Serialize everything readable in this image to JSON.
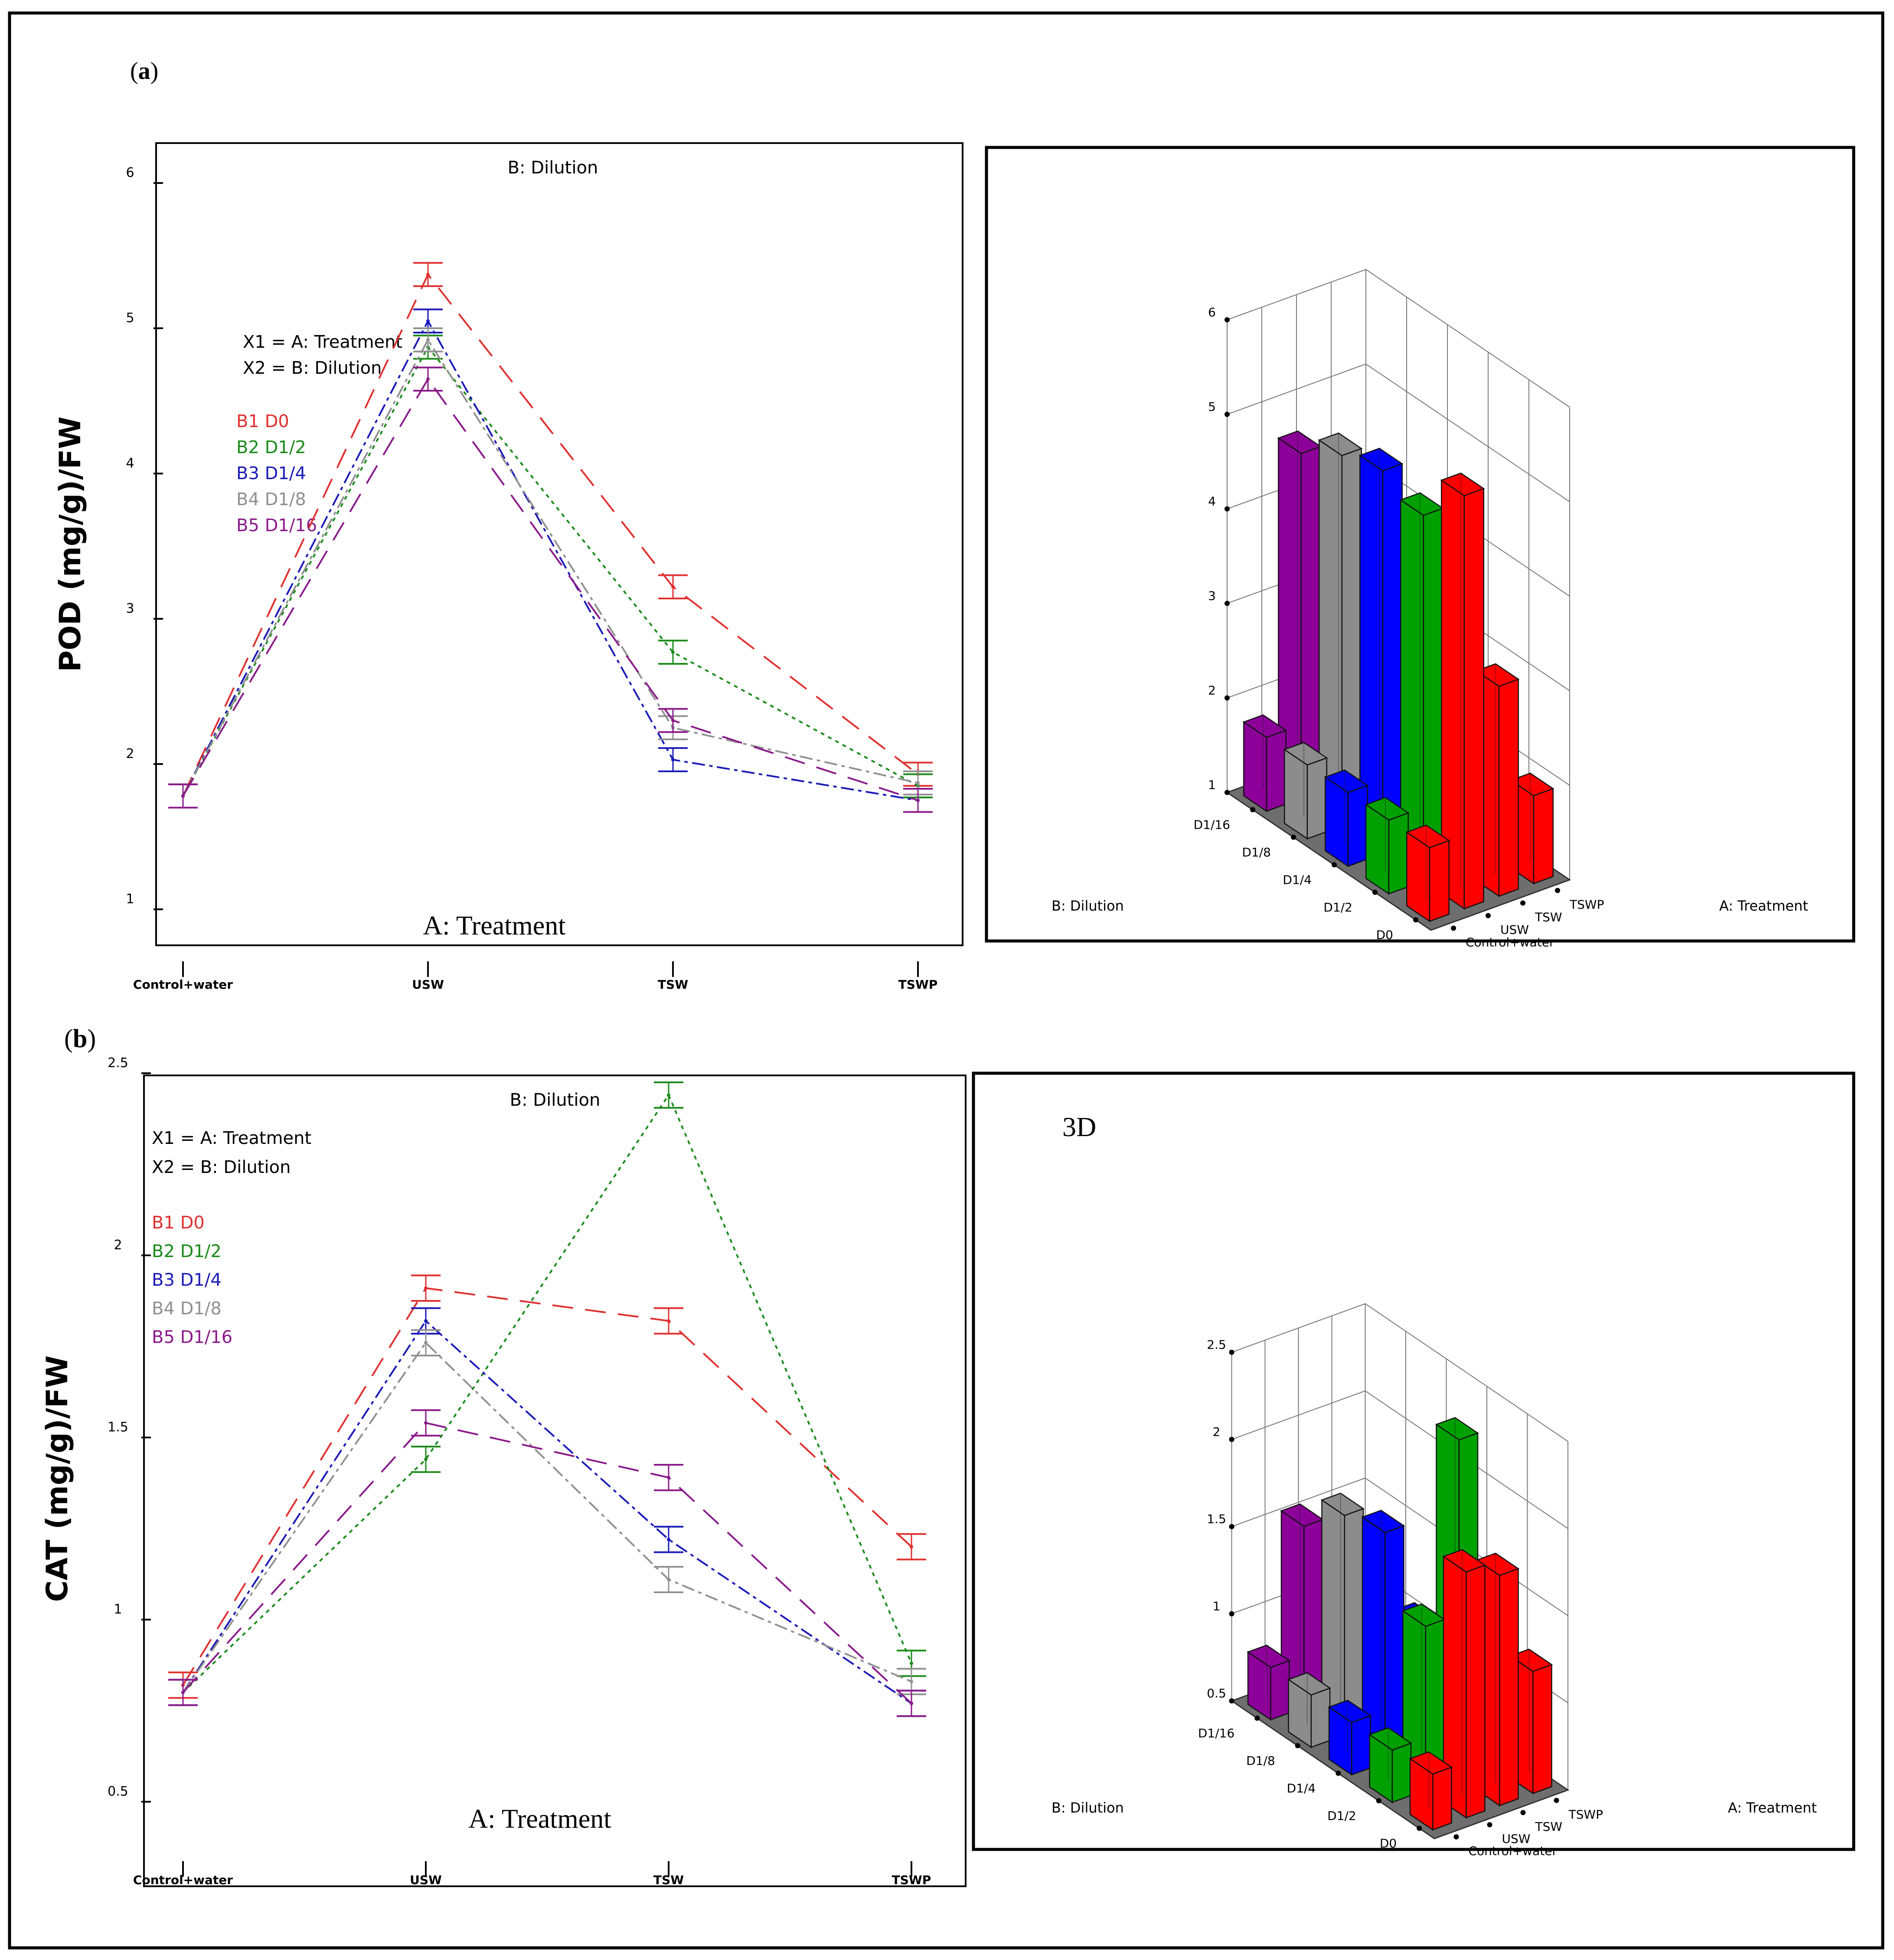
{
  "panels": [
    {
      "panel_label": "(a)",
      "label_prefix": "(",
      "label_letter": "a",
      "label_suffix": ")",
      "chart_title": "B: Dilution",
      "ylabel": "POD (mg/g)/FW",
      "xlabel_inner": "A: Treatment",
      "x_ticks": [
        "Control+water",
        "USW",
        "TSW",
        "TSWP"
      ],
      "y_ticks": [
        "1",
        "2",
        "3",
        "4",
        "5",
        "6"
      ],
      "factor_lines": [
        "X1 = A: Treatment",
        "X2 = B: Dilution"
      ],
      "plot3d": {
        "label": "",
        "y_ticks": [
          "1",
          "2",
          "3",
          "4",
          "5",
          "6"
        ],
        "dilution_ticks": [
          "D1/16",
          "D1/8",
          "D1/4",
          "D1/2",
          "D0"
        ],
        "treatment_ticks": [
          "Control+water",
          "USW",
          "TSW",
          "TSWP"
        ],
        "dilution_axis": "B: Dilution",
        "treatment_axis": "A: Treatment"
      }
    },
    {
      "panel_label": "(b)",
      "label_prefix": "(",
      "label_letter": "b",
      "label_suffix": ")",
      "chart_title": "B: Dilution",
      "ylabel": "CAT (mg/g)/FW",
      "xlabel_inner": "A: Treatment",
      "x_ticks": [
        "Control+water",
        "USW",
        "TSW",
        "TSWP"
      ],
      "y_ticks": [
        "0.5",
        "1",
        "1.5",
        "2",
        "2.5"
      ],
      "factor_lines": [
        "X1 = A: Treatment",
        "X2 = B: Dilution"
      ],
      "plot3d": {
        "label": "3D",
        "y_ticks": [
          "0.5",
          "1",
          "1.5",
          "2",
          "2.5"
        ],
        "dilution_ticks": [
          "D1/16",
          "D1/8",
          "D1/4",
          "D1/2",
          "D0"
        ],
        "treatment_ticks": [
          "Control+water",
          "USW",
          "TSW",
          "TSWP"
        ],
        "dilution_axis": "B: Dilution",
        "treatment_axis": "A: Treatment"
      }
    }
  ],
  "series_styles": [
    {
      "name": "B1 D0",
      "color": "#e03030",
      "dash": "48 28"
    },
    {
      "name": "B2 D1/2",
      "color": "#1a8a1a",
      "dash": "9 10"
    },
    {
      "name": "B3 D1/4",
      "color": "#1a1ab8",
      "dash": "30 10 8 10"
    },
    {
      "name": "B4 D1/8",
      "color": "#909090",
      "dash": "30 10 8 10"
    },
    {
      "name": "B5 D1/16",
      "color": "#8a1a8a",
      "dash": "48 28"
    }
  ],
  "bar_colors": {
    "D0": "#ff0000",
    "D1/2": "#00a000",
    "D1/4": "#0000ff",
    "D1/8": "#8c8c8c",
    "D1/16": "#8c0099"
  },
  "chart_data": [
    {
      "type": "line",
      "title": "B: Dilution",
      "xlabel": "A: Treatment",
      "ylabel": "POD (mg/g)/FW",
      "categories": [
        "Control+water",
        "USW",
        "TSW",
        "TSWP"
      ],
      "ylim": [
        0.9,
        6.3
      ],
      "series": [
        {
          "name": "B1 D0",
          "values": [
            1.78,
            5.37,
            3.22,
            1.93
          ],
          "error": [
            0.08,
            0.08,
            0.08,
            0.08
          ]
        },
        {
          "name": "B2 D1/2",
          "values": [
            1.78,
            4.87,
            2.77,
            1.85
          ],
          "error": [
            0.08,
            0.08,
            0.08,
            0.08
          ]
        },
        {
          "name": "B3 D1/4",
          "values": [
            1.78,
            5.05,
            2.03,
            1.75
          ],
          "error": [
            0.08,
            0.08,
            0.08,
            0.08
          ]
        },
        {
          "name": "B4 D1/8",
          "values": [
            1.78,
            4.92,
            2.25,
            1.87
          ],
          "error": [
            0.08,
            0.08,
            0.08,
            0.08
          ]
        },
        {
          "name": "B5 D1/16",
          "values": [
            1.78,
            4.65,
            2.3,
            1.75
          ],
          "error": [
            0.08,
            0.08,
            0.08,
            0.08
          ]
        }
      ],
      "bars3d": {
        "type": "bar3d",
        "ylim": [
          1,
          6
        ],
        "dilutions": [
          "D0",
          "D1/2",
          "D1/4",
          "D1/8",
          "D1/16"
        ],
        "treatments": [
          "Control+water",
          "USW",
          "TSW",
          "TSWP"
        ],
        "values": [
          [
            1.78,
            5.37,
            3.22,
            1.93
          ],
          [
            1.78,
            4.87,
            2.77,
            1.85
          ],
          [
            1.78,
            5.05,
            2.03,
            1.75
          ],
          [
            1.78,
            4.92,
            2.25,
            1.87
          ],
          [
            1.78,
            4.65,
            2.3,
            1.75
          ]
        ]
      }
    },
    {
      "type": "line",
      "title": "B: Dilution",
      "xlabel": "A: Treatment",
      "ylabel": "CAT (mg/g)/FW",
      "categories": [
        "Control+water",
        "USW",
        "TSW",
        "TSWP"
      ],
      "ylim": [
        0.45,
        2.55
      ],
      "series": [
        {
          "name": "B1 D0",
          "values": [
            0.82,
            1.91,
            1.82,
            1.2
          ],
          "error": [
            0.035,
            0.035,
            0.035,
            0.035
          ]
        },
        {
          "name": "B2 D1/2",
          "values": [
            0.8,
            1.44,
            2.44,
            0.88
          ],
          "error": [
            0.035,
            0.035,
            0.035,
            0.035
          ]
        },
        {
          "name": "B3 D1/4",
          "values": [
            0.8,
            1.82,
            1.22,
            0.77
          ],
          "error": [
            0.035,
            0.035,
            0.035,
            0.035
          ]
        },
        {
          "name": "B4 D1/8",
          "values": [
            0.8,
            1.76,
            1.11,
            0.83
          ],
          "error": [
            0.035,
            0.035,
            0.035,
            0.035
          ]
        },
        {
          "name": "B5 D1/16",
          "values": [
            0.8,
            1.54,
            1.39,
            0.77
          ],
          "error": [
            0.035,
            0.035,
            0.035,
            0.035
          ]
        }
      ],
      "bars3d": {
        "type": "bar3d",
        "ylim": [
          0.5,
          2.5
        ],
        "dilutions": [
          "D0",
          "D1/2",
          "D1/4",
          "D1/8",
          "D1/16"
        ],
        "treatments": [
          "Control+water",
          "USW",
          "TSW",
          "TSWP"
        ],
        "values": [
          [
            0.82,
            1.91,
            1.82,
            1.2
          ],
          [
            0.8,
            1.44,
            2.44,
            0.88
          ],
          [
            0.8,
            1.82,
            1.22,
            0.77
          ],
          [
            0.8,
            1.76,
            1.11,
            0.83
          ],
          [
            0.8,
            1.54,
            1.39,
            0.77
          ]
        ]
      }
    }
  ]
}
